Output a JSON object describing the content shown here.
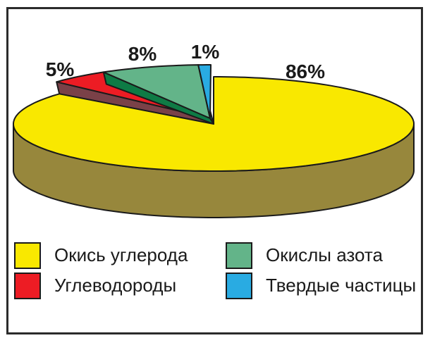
{
  "background": "#ffffff",
  "frame_color": "#2b2b2b",
  "text_color": "#1a1a1a",
  "chart_data": {
    "type": "pie",
    "style": "3d-exploded",
    "unit": "%",
    "title": "",
    "legend_position": "bottom",
    "slices": [
      {
        "label": "Окись углерода",
        "value": 86,
        "pct_label": "86%",
        "color": "#F9E800",
        "side_color": "#97873C"
      },
      {
        "label": "Углеводороды",
        "value": 5,
        "pct_label": "5%",
        "color": "#ED1C24",
        "side_color": "#7A4148"
      },
      {
        "label": "Окислы азота",
        "value": 8,
        "pct_label": "8%",
        "color": "#63B489",
        "side_color": "#0E7B45"
      },
      {
        "label": "Твердые частицы",
        "value": 1,
        "pct_label": "1%",
        "color": "#29ABE2",
        "side_color": "#167A8C"
      }
    ]
  }
}
